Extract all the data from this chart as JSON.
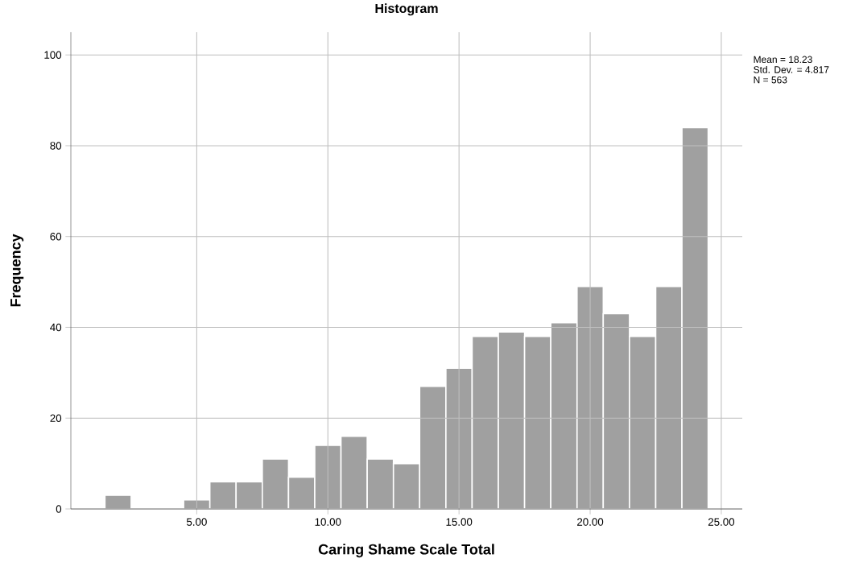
{
  "chart_data": {
    "type": "histogram",
    "title": "Histogram",
    "xlabel": "Caring Shame Scale Total",
    "ylabel": "Frequency",
    "bins": [
      1.5,
      2.5,
      3.5,
      4.5,
      5.5,
      6.5,
      7.5,
      8.5,
      9.5,
      10.5,
      11.5,
      12.5,
      13.5,
      14.5,
      15.5,
      16.5,
      17.5,
      18.5,
      19.5,
      20.5,
      21.5,
      22.5,
      23.5,
      24.5
    ],
    "values": [
      3,
      0,
      0,
      2,
      6,
      6,
      11,
      7,
      14,
      16,
      11,
      10,
      27,
      31,
      38,
      39,
      38,
      41,
      49,
      43,
      38,
      49,
      84
    ],
    "color": "#a0a0a0",
    "xlim": [
      0.2,
      25.8
    ],
    "ylim": [
      0,
      105
    ],
    "xticks": [
      {
        "value": 5,
        "label": "5.00"
      },
      {
        "value": 10,
        "label": "10.00"
      },
      {
        "value": 15,
        "label": "15.00"
      },
      {
        "value": 20,
        "label": "20.00"
      },
      {
        "value": 25,
        "label": "25.00"
      }
    ],
    "yticks": [
      0,
      20,
      40,
      60,
      80,
      100
    ],
    "grid": true,
    "annotations": [
      "Mean = 18.23",
      "Std. Dev. = 4.817",
      "N = 563"
    ]
  }
}
